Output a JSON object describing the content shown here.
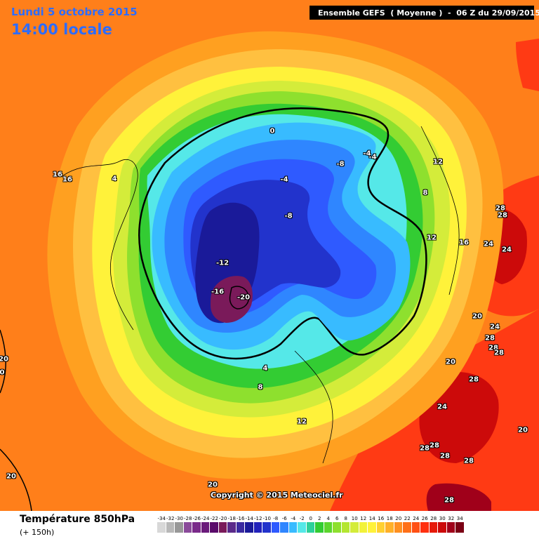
{
  "header": {
    "date": "Lundi 5 octobre 2015",
    "time": "14:00 locale",
    "run_info": "Ensemble GEFS  ( Moyenne )  -  06 Z du 29/09/2015"
  },
  "footer": {
    "copyright": "Copyright © 2015 Meteociel.fr",
    "parameter": "Température 850hPa",
    "lead_time": "(+ 150h)"
  },
  "colors": {
    "orange_outer": "#ff7f1a",
    "orange_mid": "#ffa020",
    "light_orange": "#ffc040",
    "yellow": "#fff23a",
    "light_yellow": "#ffe870",
    "yellow_green": "#d4ec3a",
    "green": "#8ee02e",
    "green_dark": "#33cc33",
    "teal": "#2ed09a",
    "cyan": "#55e8e8",
    "light_blue": "#38bbff",
    "blue": "#2f86ff",
    "mid_blue": "#2f5aff",
    "deep_blue": "#2233cc",
    "navy": "#1a1a99",
    "purple": "#5a2a8a",
    "magenta_dark": "#7a1a5a",
    "red": "#ff3a14",
    "dark_red": "#cc0a0a",
    "maroon": "#a0001a"
  },
  "scale": [
    {
      "label": "-34",
      "color": "#d8d8d8"
    },
    {
      "label": "-32",
      "color": "#b8b8b8"
    },
    {
      "label": "-30",
      "color": "#989898"
    },
    {
      "label": "-28",
      "color": "#8a4a9a"
    },
    {
      "label": "-26",
      "color": "#7a2a8a"
    },
    {
      "label": "-24",
      "color": "#6a1a7a"
    },
    {
      "label": "-22",
      "color": "#5a0a6a"
    },
    {
      "label": "-20",
      "color": "#7a1a5a"
    },
    {
      "label": "-18",
      "color": "#5a2a8a"
    },
    {
      "label": "-16",
      "color": "#3a2aa0"
    },
    {
      "label": "-14",
      "color": "#1a1a99"
    },
    {
      "label": "-12",
      "color": "#2222bb"
    },
    {
      "label": "-10",
      "color": "#2233cc"
    },
    {
      "label": "-8",
      "color": "#2f5aff"
    },
    {
      "label": "-6",
      "color": "#2f86ff"
    },
    {
      "label": "-4",
      "color": "#38bbff"
    },
    {
      "label": "-2",
      "color": "#55e8e8"
    },
    {
      "label": "0",
      "color": "#2ed09a"
    },
    {
      "label": "2",
      "color": "#33cc33"
    },
    {
      "label": "4",
      "color": "#5cd62e"
    },
    {
      "label": "6",
      "color": "#8ee02e"
    },
    {
      "label": "8",
      "color": "#b4e632"
    },
    {
      "label": "10",
      "color": "#d4ec3a"
    },
    {
      "label": "12",
      "color": "#f2f23a"
    },
    {
      "label": "14",
      "color": "#fff23a"
    },
    {
      "label": "16",
      "color": "#ffd030"
    },
    {
      "label": "18",
      "color": "#ffb028"
    },
    {
      "label": "20",
      "color": "#ff9020"
    },
    {
      "label": "22",
      "color": "#ff7018"
    },
    {
      "label": "24",
      "color": "#ff5014"
    },
    {
      "label": "26",
      "color": "#ff3010"
    },
    {
      "label": "28",
      "color": "#e61a0a"
    },
    {
      "label": "30",
      "color": "#cc0a0a"
    },
    {
      "label": "32",
      "color": "#a0001a"
    },
    {
      "label": "34",
      "color": "#7a0014"
    }
  ],
  "map_labels": [
    {
      "id": "l1",
      "text": "16"
    },
    {
      "id": "l2",
      "text": "16"
    },
    {
      "id": "l3",
      "text": "4"
    },
    {
      "id": "l4",
      "text": "0"
    },
    {
      "id": "l5",
      "text": "-4"
    },
    {
      "id": "l6",
      "text": "-8"
    },
    {
      "id": "l7",
      "text": "-4"
    },
    {
      "id": "l8",
      "text": "-4"
    },
    {
      "id": "l9",
      "text": "-8"
    },
    {
      "id": "l10",
      "text": "-12"
    },
    {
      "id": "l11",
      "text": "-16"
    },
    {
      "id": "l12",
      "text": "-20"
    },
    {
      "id": "l13",
      "text": "12"
    },
    {
      "id": "l14",
      "text": "8"
    },
    {
      "id": "l15",
      "text": "12"
    },
    {
      "id": "l16",
      "text": "16"
    },
    {
      "id": "l17",
      "text": "28"
    },
    {
      "id": "l18",
      "text": "28"
    },
    {
      "id": "l19",
      "text": "24"
    },
    {
      "id": "l20",
      "text": "24"
    },
    {
      "id": "l21",
      "text": "20"
    },
    {
      "id": "l22",
      "text": "24"
    },
    {
      "id": "l23",
      "text": "28"
    },
    {
      "id": "l24",
      "text": "28"
    },
    {
      "id": "l25",
      "text": "28"
    },
    {
      "id": "l26",
      "text": "20"
    },
    {
      "id": "l27",
      "text": "28"
    },
    {
      "id": "l28",
      "text": "24"
    },
    {
      "id": "l29",
      "text": "20"
    },
    {
      "id": "l30",
      "text": "28"
    },
    {
      "id": "l31",
      "text": "28"
    },
    {
      "id": "l32",
      "text": "28"
    },
    {
      "id": "l33",
      "text": "28"
    },
    {
      "id": "l34",
      "text": "4"
    },
    {
      "id": "l35",
      "text": "8"
    },
    {
      "id": "l36",
      "text": "12"
    },
    {
      "id": "l37",
      "text": "20"
    },
    {
      "id": "l38",
      "text": "20"
    },
    {
      "id": "l39",
      "text": "20"
    },
    {
      "id": "l40",
      "text": "0"
    },
    {
      "id": "l41",
      "text": "28"
    }
  ]
}
